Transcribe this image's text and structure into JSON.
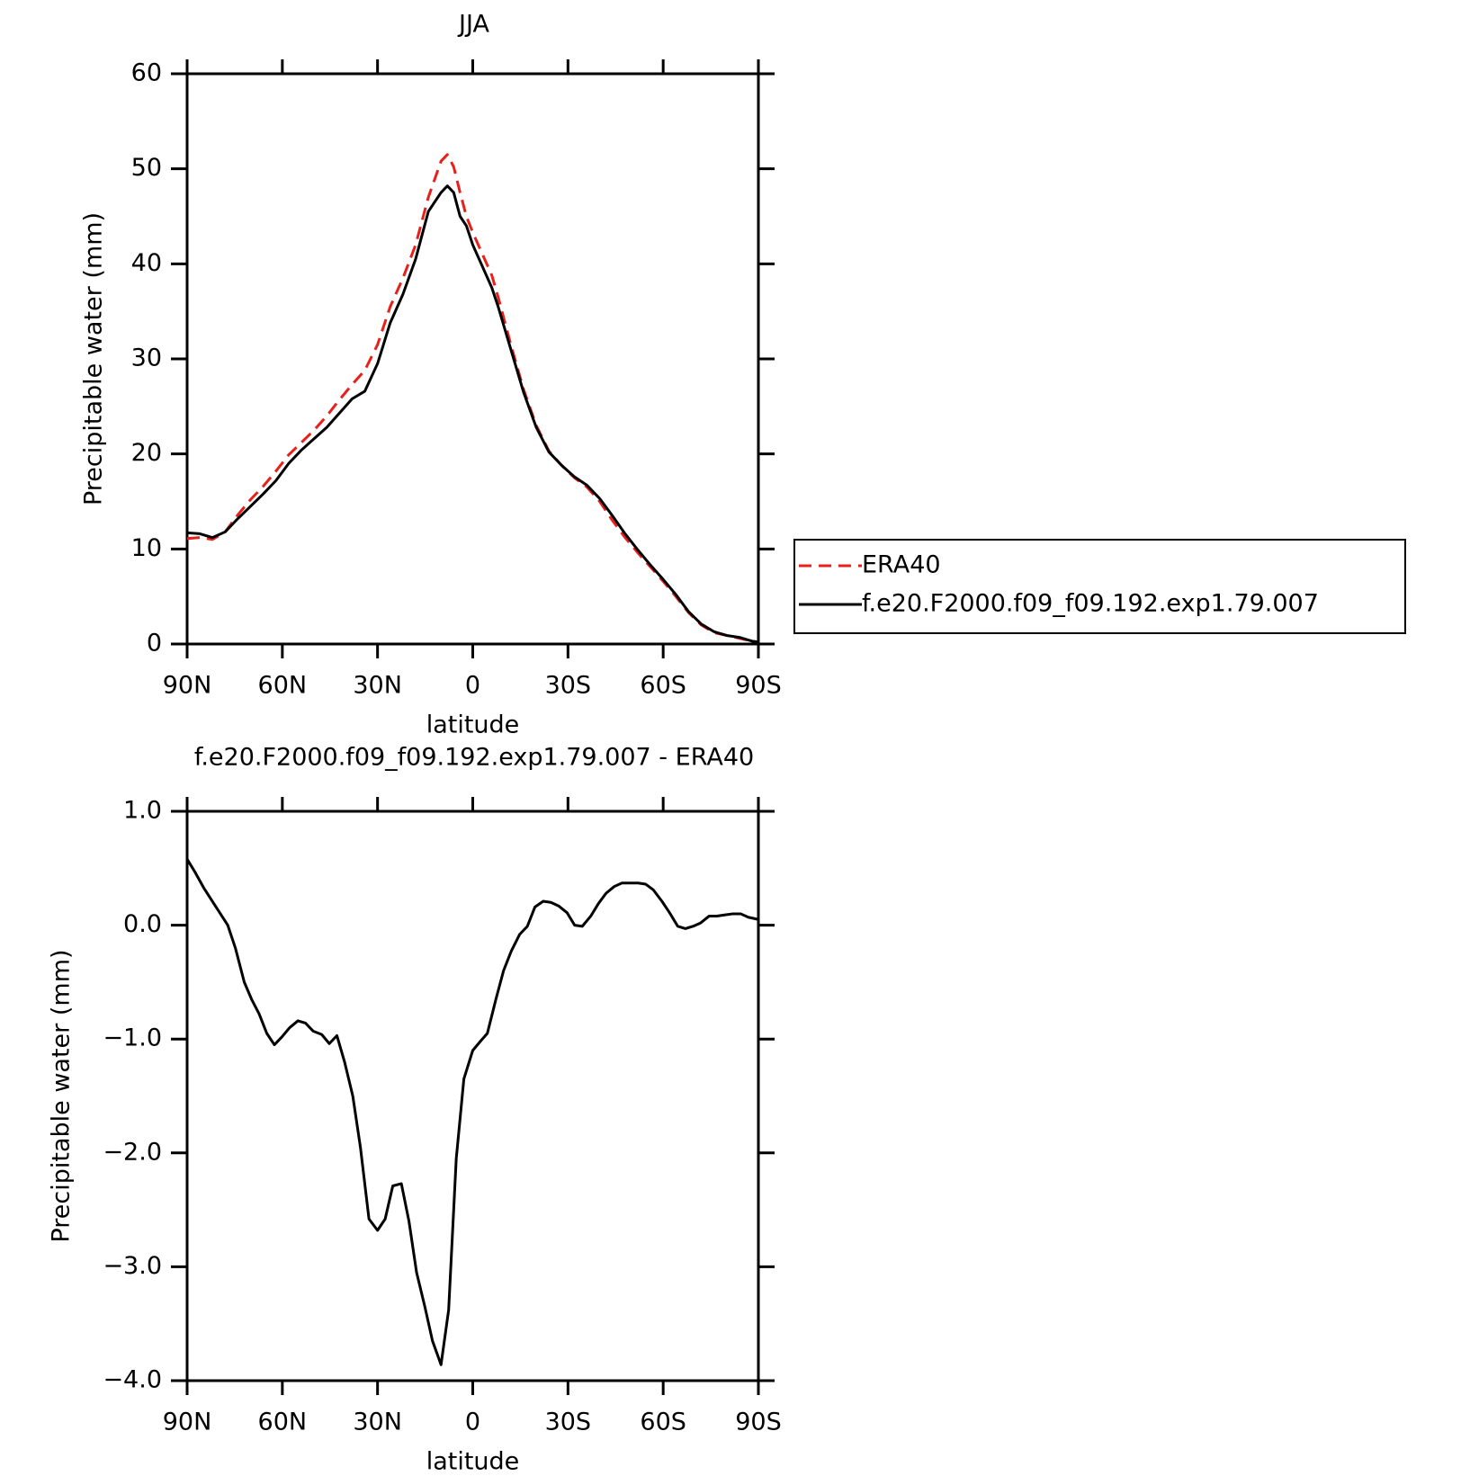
{
  "chart_data": [
    {
      "type": "line",
      "title": "JJA",
      "xlabel": "latitude",
      "ylabel": "Precipitable water (mm)",
      "x": [
        90,
        86,
        82,
        78,
        74,
        70,
        66,
        62,
        58,
        54,
        50,
        46,
        42,
        38,
        34,
        30,
        26,
        22,
        18,
        14,
        10,
        8,
        6,
        4,
        2,
        0,
        -2,
        -6,
        -8,
        -12,
        -16,
        -20,
        -24,
        -28,
        -32,
        -36,
        -40,
        -44,
        -48,
        -52,
        -56,
        -60,
        -64,
        -68,
        -72,
        -76,
        -80,
        -84,
        -88,
        -90
      ],
      "series": [
        {
          "name": "ERA40",
          "color": "#e8201c",
          "dash": true,
          "values": [
            11.1,
            11.2,
            11.0,
            11.8,
            13.6,
            15.2,
            16.6,
            18.2,
            19.9,
            21.2,
            22.5,
            24.0,
            25.7,
            27.3,
            28.8,
            31.5,
            35.5,
            38.5,
            42.0,
            47.0,
            50.8,
            51.5,
            50.2,
            47.5,
            45.0,
            43.3,
            41.8,
            38.8,
            36.5,
            31.5,
            26.8,
            23.0,
            20.3,
            18.8,
            17.5,
            16.5,
            15.0,
            13.0,
            11.2,
            9.6,
            8.1,
            6.6,
            5.0,
            3.3,
            2.0,
            1.2,
            0.9,
            0.6,
            0.3,
            0.2
          ]
        },
        {
          "name": "f.e20.F2000.f09_f09.192.exp1.79.007",
          "color": "#000000",
          "dash": false,
          "values": [
            11.7,
            11.6,
            11.2,
            11.8,
            13.2,
            14.5,
            15.8,
            17.2,
            19.0,
            20.4,
            21.6,
            22.8,
            24.3,
            25.8,
            26.6,
            29.5,
            33.8,
            36.8,
            40.5,
            45.5,
            47.5,
            48.2,
            47.5,
            45.0,
            44.0,
            42.0,
            40.5,
            37.5,
            35.5,
            31.0,
            26.5,
            22.8,
            20.2,
            18.8,
            17.6,
            16.7,
            15.3,
            13.5,
            11.6,
            9.9,
            8.3,
            6.8,
            5.2,
            3.4,
            2.1,
            1.3,
            0.9,
            0.7,
            0.3,
            0.2
          ]
        }
      ],
      "xlim": [
        90,
        -90
      ],
      "xticks": [
        {
          "value": 90,
          "label": "90N"
        },
        {
          "value": 60,
          "label": "60N"
        },
        {
          "value": 30,
          "label": "30N"
        },
        0,
        {
          "value": -30,
          "label": "30S"
        },
        {
          "value": -60,
          "label": "60S"
        },
        {
          "value": -90,
          "label": "90S"
        }
      ],
      "ylim": [
        0,
        60
      ],
      "yticks": [
        0,
        10,
        20,
        30,
        40,
        50,
        60
      ],
      "grid": false,
      "legend": "right"
    },
    {
      "type": "line",
      "title": "f.e20.F2000.f09_f09.192.exp1.79.007 - ERA40",
      "xlabel": "latitude",
      "ylabel": "Precipitable water (mm)",
      "x": [
        90,
        87.6,
        84.6,
        77.2,
        74.8,
        72,
        69.7,
        67.3,
        64.9,
        62.5,
        60.1,
        57.7,
        55.1,
        52.7,
        50.3,
        47.6,
        45.2,
        42.8,
        40.4,
        37.8,
        35.4,
        32.7,
        30,
        27.6,
        25.2,
        22.5,
        20.1,
        17.7,
        15.1,
        12.7,
        10,
        7.6,
        5.2,
        2.8,
        0,
        -2.4,
        -4.6,
        -7.3,
        -9.7,
        -12.1,
        -14.8,
        -17.2,
        -19.6,
        -22.2,
        -24.6,
        -27,
        -29.7,
        -32.1,
        -34.5,
        -37.2,
        -39.6,
        -42,
        -44.6,
        -47,
        -49.4,
        -52.1,
        -54.5,
        -56.9,
        -59.6,
        -62,
        -64.6,
        -67,
        -69.4,
        -71.8,
        -74.5,
        -76.9,
        -79.3,
        -82,
        -84.4,
        -86.8,
        -90
      ],
      "series": [
        {
          "name": "f.e20.F2000.f09_f09.192.exp1.79.007 - ERA40",
          "color": "#000000",
          "dash": false,
          "values": [
            0.58,
            0.47,
            0.32,
            0.0,
            -0.2,
            -0.5,
            -0.65,
            -0.78,
            -0.95,
            -1.05,
            -0.98,
            -0.9,
            -0.84,
            -0.86,
            -0.93,
            -0.96,
            -1.04,
            -0.97,
            -1.2,
            -1.5,
            -1.95,
            -2.58,
            -2.68,
            -2.58,
            -2.29,
            -2.27,
            -2.6,
            -3.05,
            -3.35,
            -3.65,
            -3.86,
            -3.38,
            -2.05,
            -1.35,
            -1.1,
            -1.02,
            -0.95,
            -0.65,
            -0.4,
            -0.23,
            -0.08,
            -0.01,
            0.16,
            0.21,
            0.2,
            0.17,
            0.11,
            0.0,
            -0.01,
            0.08,
            0.19,
            0.28,
            0.34,
            0.37,
            0.37,
            0.37,
            0.36,
            0.31,
            0.21,
            0.11,
            -0.01,
            -0.03,
            -0.01,
            0.02,
            0.08,
            0.08,
            0.09,
            0.1,
            0.1,
            0.07,
            0.05
          ]
        }
      ],
      "xlim": [
        90,
        -90
      ],
      "xticks": [
        {
          "value": 90,
          "label": "90N"
        },
        {
          "value": 60,
          "label": "60N"
        },
        {
          "value": 30,
          "label": "30N"
        },
        0,
        {
          "value": -30,
          "label": "30S"
        },
        {
          "value": -60,
          "label": "60S"
        },
        {
          "value": -90,
          "label": "90S"
        }
      ],
      "ylim": [
        -4,
        1
      ],
      "yticks": [
        {
          "value": 1,
          "label": "1.0"
        },
        {
          "value": 0,
          "label": "0.0"
        },
        {
          "value": -1,
          "label": "−1.0"
        },
        {
          "value": -2,
          "label": "−2.0"
        },
        {
          "value": -3,
          "label": "−3.0"
        },
        {
          "value": -4,
          "label": "−4.0"
        }
      ],
      "grid": false
    }
  ]
}
